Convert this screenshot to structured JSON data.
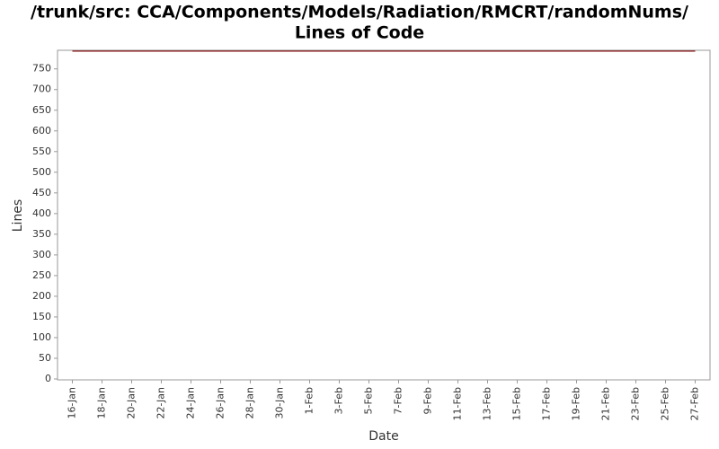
{
  "chart_data": {
    "type": "line",
    "title": [
      "/trunk/src: CCA/Components/Models/Radiation/RMCRT/randomNums/",
      "Lines of Code"
    ],
    "x_label": "Date",
    "y_label": "Lines",
    "x": [
      "16-Jan",
      "27-Feb"
    ],
    "series": [
      {
        "name": "Lines",
        "color": "#800000",
        "values": [
          793,
          793
        ]
      }
    ],
    "xlim": [
      "15-Jan",
      "28-Feb"
    ],
    "xticks": [
      "16-Jan",
      "18-Jan",
      "20-Jan",
      "22-Jan",
      "24-Jan",
      "26-Jan",
      "28-Jan",
      "30-Jan",
      "1-Feb",
      "3-Feb",
      "5-Feb",
      "7-Feb",
      "9-Feb",
      "11-Feb",
      "13-Feb",
      "15-Feb",
      "17-Feb",
      "19-Feb",
      "21-Feb",
      "23-Feb",
      "25-Feb",
      "27-Feb"
    ],
    "ylim": [
      0,
      795
    ],
    "yticks": [
      0,
      50,
      100,
      150,
      200,
      250,
      300,
      350,
      400,
      450,
      500,
      550,
      600,
      650,
      700,
      750
    ],
    "grid": false
  }
}
